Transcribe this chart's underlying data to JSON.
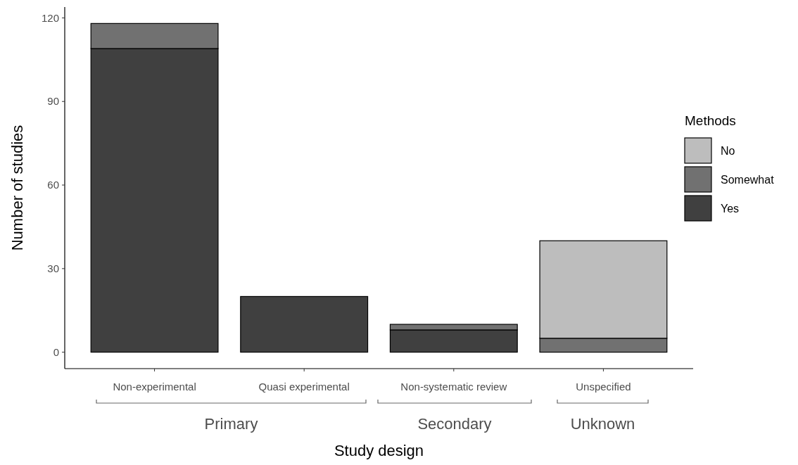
{
  "chart_data": {
    "type": "bar",
    "stacked": true,
    "xlabel": "Study design",
    "ylabel": "Number of studies",
    "legend_title": "Methods",
    "legend": "right",
    "categories": [
      "Non-experimental",
      "Quasi experimental",
      "Non-systematic review",
      "Unspecified"
    ],
    "series": [
      {
        "name": "Yes",
        "color": "#404040",
        "values": [
          109,
          20,
          8,
          0
        ]
      },
      {
        "name": "Somewhat",
        "color": "#717171",
        "values": [
          9,
          0,
          2,
          5
        ]
      },
      {
        "name": "No",
        "color": "#bdbdbd",
        "values": [
          0,
          0,
          0,
          35
        ]
      }
    ],
    "ylim": [
      -5.9,
      123.9
    ],
    "yticks": [
      0,
      30,
      60,
      90,
      120
    ],
    "grid": false,
    "annotations": [
      "Primary",
      "Secondary",
      "Unknown"
    ]
  }
}
